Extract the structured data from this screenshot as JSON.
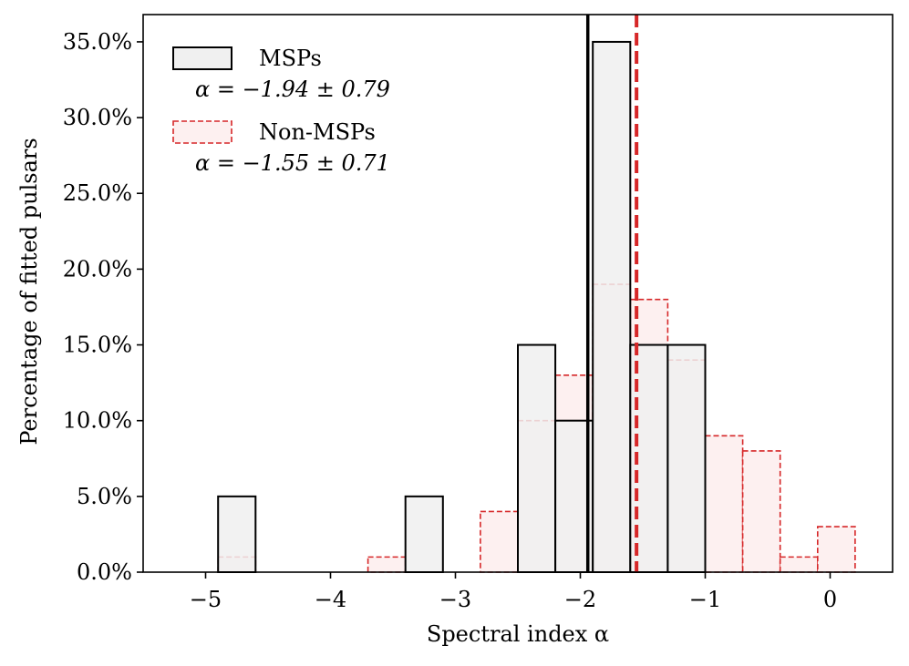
{
  "chart_data": {
    "type": "bar",
    "xlabel": "Spectral index α",
    "ylabel": "Percentage of fitted pulsars",
    "xlim": [
      -5.5,
      0.5
    ],
    "ylim": [
      0,
      36.8
    ],
    "x_ticks": [
      -5,
      -4,
      -3,
      -2,
      -1,
      0
    ],
    "x_tick_labels": [
      "−5",
      "−4",
      "−3",
      "−2",
      "−1",
      "0"
    ],
    "y_ticks": [
      0,
      5,
      10,
      15,
      20,
      25,
      30,
      35
    ],
    "y_tick_labels": [
      "0.0%",
      "5.0%",
      "10.0%",
      "15.0%",
      "20.0%",
      "25.0%",
      "30.0%",
      "35.0%"
    ],
    "grid": false,
    "legend_position": "top-left",
    "series": [
      {
        "name": "MSPs",
        "stat_label": "α = −1.94 ± 0.79",
        "mean": -1.94,
        "color": "#000000",
        "fill": "#f0f0f0",
        "line_style": "solid",
        "bins": [
          {
            "x0": -4.9,
            "x1": -4.6,
            "value": 5
          },
          {
            "x0": -3.4,
            "x1": -3.1,
            "value": 5
          },
          {
            "x0": -2.5,
            "x1": -2.2,
            "value": 15
          },
          {
            "x0": -2.2,
            "x1": -1.9,
            "value": 10
          },
          {
            "x0": -1.9,
            "x1": -1.6,
            "value": 35
          },
          {
            "x0": -1.6,
            "x1": -1.3,
            "value": 15
          },
          {
            "x0": -1.3,
            "x1": -1.0,
            "value": 15
          }
        ]
      },
      {
        "name": "Non-MSPs",
        "stat_label": "α = −1.55 ± 0.71",
        "mean": -1.55,
        "color": "#d62728",
        "fill": "#fdf0f0",
        "line_style": "dashed",
        "bins": [
          {
            "x0": -4.9,
            "x1": -4.6,
            "value": 1
          },
          {
            "x0": -3.7,
            "x1": -3.4,
            "value": 1
          },
          {
            "x0": -2.8,
            "x1": -2.5,
            "value": 4
          },
          {
            "x0": -2.5,
            "x1": -2.2,
            "value": 10
          },
          {
            "x0": -2.2,
            "x1": -1.9,
            "value": 13
          },
          {
            "x0": -1.9,
            "x1": -1.6,
            "value": 19
          },
          {
            "x0": -1.6,
            "x1": -1.3,
            "value": 18
          },
          {
            "x0": -1.3,
            "x1": -1.0,
            "value": 14
          },
          {
            "x0": -1.0,
            "x1": -0.7,
            "value": 9
          },
          {
            "x0": -0.7,
            "x1": -0.4,
            "value": 8
          },
          {
            "x0": -0.4,
            "x1": -0.1,
            "value": 1
          },
          {
            "x0": -0.1,
            "x1": 0.2,
            "value": 3
          }
        ]
      }
    ]
  }
}
